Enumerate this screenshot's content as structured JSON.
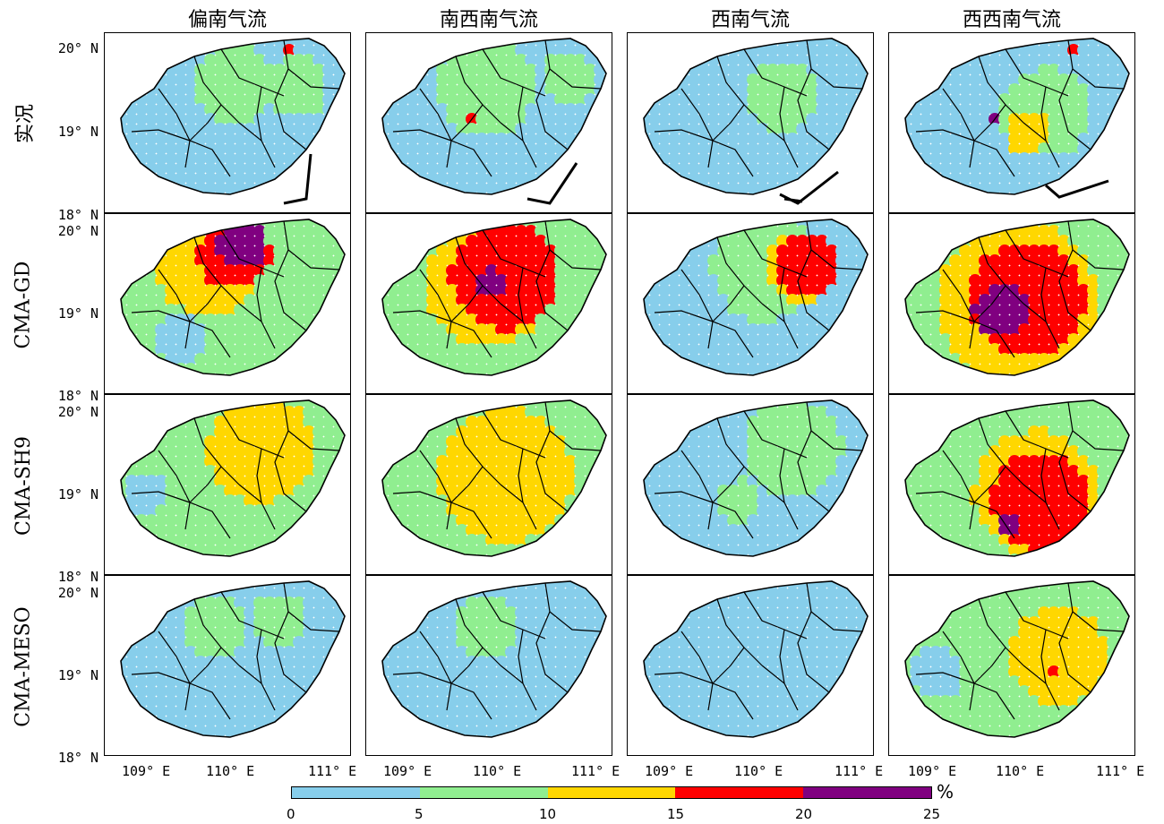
{
  "column_titles": [
    "偏南气流",
    "南西南气流",
    "西南气流",
    "西西南气流"
  ],
  "row_titles": [
    "实况",
    "CMA-GD",
    "CMA-SH9",
    "CMA-MESO"
  ],
  "lat_labels": [
    "20° N",
    "19° N",
    "18° N"
  ],
  "lon_labels": [
    "109° E",
    "110° E",
    "111° E"
  ],
  "colorbar": {
    "ticks": [
      "0",
      "5",
      "10",
      "15",
      "20",
      "25"
    ],
    "unit": "%",
    "colors": [
      "#87ceeb",
      "#90ee90",
      "#ffd700",
      "#ff0000",
      "#800080"
    ]
  },
  "panels": [
    {
      "base": "blue",
      "regions": []
    },
    {
      "base": "blue",
      "regions": []
    },
    {
      "base": "blue",
      "regions": []
    },
    {
      "base": "blue",
      "regions": []
    },
    {
      "base": "green",
      "regions": []
    },
    {
      "base": "green",
      "regions": []
    },
    {
      "base": "green",
      "regions": []
    },
    {
      "base": "green",
      "regions": []
    },
    {
      "base": "green",
      "regions": []
    },
    {
      "base": "green",
      "regions": []
    },
    {
      "base": "blue",
      "regions": []
    },
    {
      "base": "green",
      "regions": []
    },
    {
      "base": "blue",
      "regions": []
    },
    {
      "base": "blue",
      "regions": []
    },
    {
      "base": "blue",
      "regions": []
    },
    {
      "base": "green",
      "regions": []
    }
  ]
}
